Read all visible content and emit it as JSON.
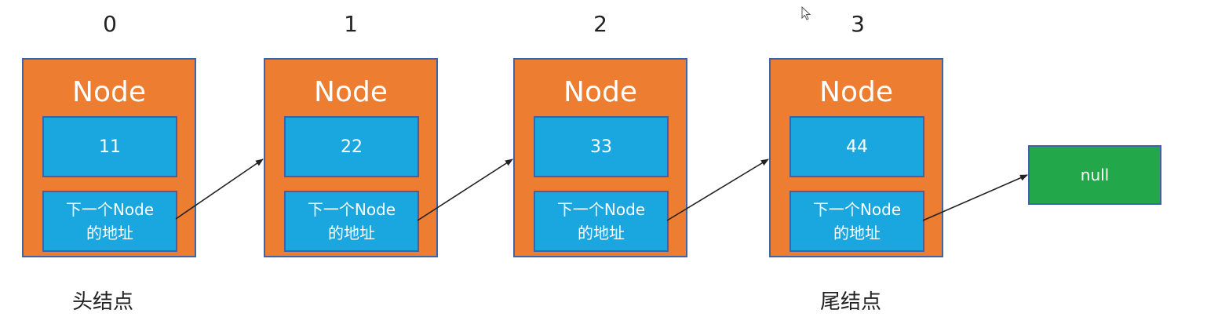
{
  "indices": [
    "0",
    "1",
    "2",
    "3"
  ],
  "nodes": [
    {
      "title": "Node",
      "value": "11",
      "next_label": "下一个Node\n的地址"
    },
    {
      "title": "Node",
      "value": "22",
      "next_label": "下一个Node\n的地址"
    },
    {
      "title": "Node",
      "value": "33",
      "next_label": "下一个Node\n的地址"
    },
    {
      "title": "Node",
      "value": "44",
      "next_label": "下一个Node\n的地址"
    }
  ],
  "null_label": "null",
  "captions": {
    "head": "头结点",
    "tail": "尾结点"
  },
  "colors": {
    "node_fill": "#ed7d31",
    "field_fill": "#1aa7e0",
    "null_fill": "#22a84b",
    "border": "#3f63a6"
  }
}
